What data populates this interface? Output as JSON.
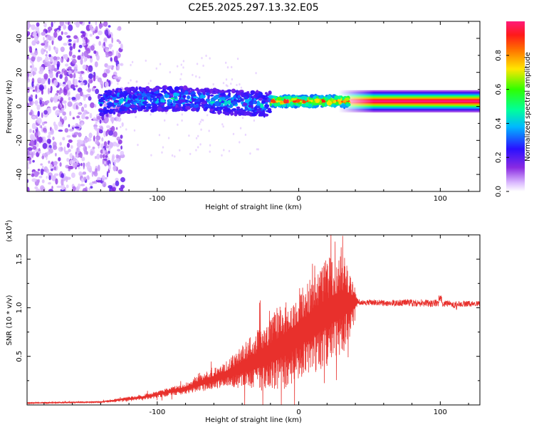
{
  "figure_title": "C2E5.2025.297.13.32.E05",
  "colors": {
    "snr_line": "#e8302c",
    "background": "#ffffff",
    "axis": "#000000"
  },
  "chart_data": [
    {
      "type": "heatmap",
      "title": "C2E5.2025.297.13.32.E05",
      "xlabel": "Height of straight line (km)",
      "ylabel": "Frequency (Hz)",
      "xlim": [
        -192,
        128
      ],
      "ylim": [
        -50,
        50
      ],
      "x_ticks": [
        -100,
        0,
        100
      ],
      "x_tick_labels": [
        "-100",
        "0",
        "100"
      ],
      "y_ticks": [
        -40,
        -20,
        0,
        20,
        40
      ],
      "y_tick_labels": [
        "-40",
        "-20",
        "0",
        "20",
        "40"
      ],
      "colorbar": {
        "label": "Normalized spectral amplitude",
        "range": [
          0,
          1
        ],
        "ticks": [
          0.0,
          0.2,
          0.4,
          0.6,
          0.8
        ],
        "tick_labels": [
          "0.0",
          "0.2",
          "0.4",
          "0.6",
          "0.8"
        ],
        "colormap": "rainbow (white-violet-blue-cyan-green-yellow-red-magenta)"
      },
      "features": [
        {
          "name": "noise region",
          "x_range": [
            -192,
            -128
          ],
          "freq_range": [
            -50,
            50
          ],
          "amplitude": "low (0.0-0.15)"
        },
        {
          "name": "signal band",
          "x_range": [
            -140,
            -20
          ],
          "center_freq_start": 3,
          "center_freq_end": 3,
          "half_width_hz": 6,
          "amplitude": "0.15-0.45"
        },
        {
          "name": "signal band (bright)",
          "x_range": [
            -20,
            35
          ],
          "center_freq": 3,
          "half_width_hz": 3,
          "amplitude": "0.5-1.0"
        },
        {
          "name": "smooth tone",
          "x_range": [
            35,
            128
          ],
          "center_freq": 3,
          "half_width_hz": 4,
          "amplitude": "peak ~1.0"
        }
      ]
    },
    {
      "type": "line",
      "xlabel": "Height of straight line (km)",
      "ylabel": "SNR (10 * v/v)",
      "y_multiplier_label": "(x10",
      "y_multiplier_exponent": "4",
      "y_multiplier_close": ")",
      "xlim": [
        -192,
        128
      ],
      "ylim": [
        0,
        1.75
      ],
      "x_ticks": [
        -100,
        0,
        100
      ],
      "x_tick_labels": [
        "-100",
        "0",
        "100"
      ],
      "y_ticks": [
        0.5,
        1.0,
        1.5
      ],
      "y_tick_labels": [
        "0.5",
        "1.0",
        "1.5"
      ],
      "series": [
        {
          "name": "SNR",
          "envelope_knots": {
            "x": [
              -192,
              -140,
              -110,
              -80,
              -50,
              -30,
              -10,
              5,
              20,
              32,
              38,
              42,
              60,
              90,
              110,
              128
            ],
            "baseline": [
              0.02,
              0.03,
              0.08,
              0.17,
              0.32,
              0.45,
              0.62,
              0.78,
              0.95,
              1.05,
              1.05,
              1.06,
              1.05,
              1.05,
              1.04,
              1.04
            ],
            "spread": [
              0.01,
              0.015,
              0.04,
              0.08,
              0.2,
              0.45,
              0.65,
              0.7,
              0.8,
              0.75,
              0.4,
              0.03,
              0.03,
              0.04,
              0.03,
              0.03
            ]
          },
          "peak": {
            "x": 31,
            "y": 1.74
          }
        }
      ]
    }
  ]
}
